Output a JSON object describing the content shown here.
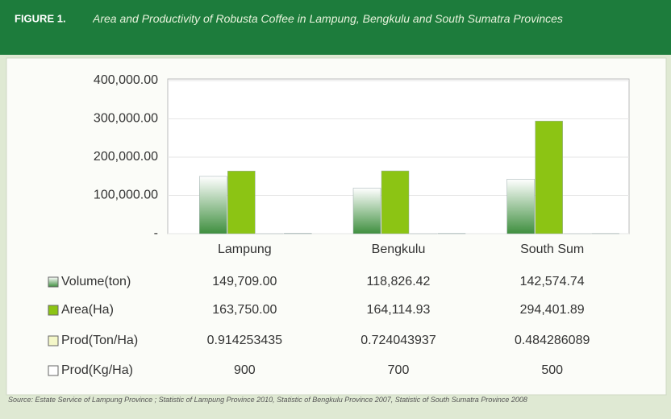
{
  "header": {
    "label": "FIGURE 1.",
    "title": "Area and Productivity of Robusta Coffee in Lampung, Bengkulu and South Sumatra Provinces"
  },
  "chart_data": {
    "type": "bar",
    "categories": [
      "Lampung",
      "Bengkulu",
      "South Sum"
    ],
    "series": [
      {
        "name": "Volume(ton)",
        "color": "#3f8f3f",
        "values": [
          149709.0,
          118826.42,
          142574.74
        ],
        "value_labels": [
          "149,709.00",
          "118,826.42",
          "142,574.74"
        ]
      },
      {
        "name": "Area(Ha)",
        "color": "#8cc414",
        "values": [
          163750.0,
          164114.93,
          294401.89
        ],
        "value_labels": [
          "163,750.00",
          "164,114.93",
          "294,401.89"
        ]
      },
      {
        "name": "Prod(Ton/Ha)",
        "color": "#f4f7c8",
        "values": [
          0.914253435,
          0.724043937,
          0.484286089
        ]
      },
      {
        "name": "Prod(Kg/Ha)",
        "color": "#ffffff",
        "values": [
          900,
          700,
          500
        ]
      }
    ],
    "ylim": [
      0,
      400000
    ],
    "yticks": [
      {
        "value": 0,
        "label": "-"
      },
      {
        "value": 100000,
        "label": "100,000.00"
      },
      {
        "value": 200000,
        "label": "200,000.00"
      },
      {
        "value": 300000,
        "label": "300,000.00"
      },
      {
        "value": 400000,
        "label": "400,000.00"
      }
    ],
    "grid": true
  },
  "source": "Source: Estate Service of Lampung Province ; Statistic of Lampung Province 2010, Statistic of Bengkulu Province 2007, Statistic of South Sumatra Province 2008"
}
